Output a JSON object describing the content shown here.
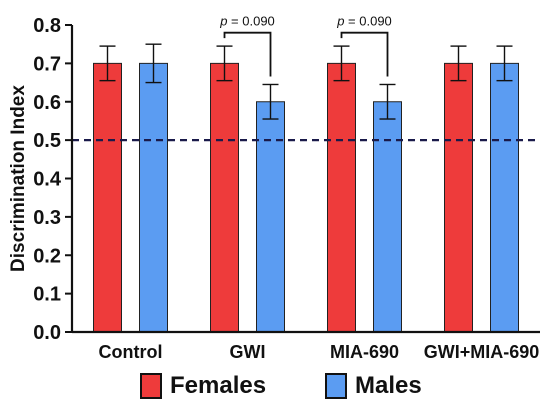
{
  "chart_data": {
    "type": "bar",
    "ylabel": "Discrimination Index",
    "xlabel": "",
    "ylim": [
      0,
      0.8
    ],
    "yticks": [
      "0.0",
      "0.1",
      "0.2",
      "0.3",
      "0.4",
      "0.5",
      "0.6",
      "0.7",
      "0.8"
    ],
    "categories": [
      "Control",
      "GWI",
      "MIA-690",
      "GWI+MIA-690"
    ],
    "series": [
      {
        "name": "Females",
        "color": "#ee3b3b",
        "values": [
          0.7,
          0.7,
          0.7,
          0.7
        ],
        "errors": [
          0.045,
          0.045,
          0.045,
          0.045
        ]
      },
      {
        "name": "Males",
        "color": "#5b9cf2",
        "values": [
          0.7,
          0.6,
          0.6,
          0.7
        ],
        "errors": [
          0.05,
          0.045,
          0.045,
          0.045
        ]
      }
    ],
    "reference_line": {
      "y": 0.5,
      "style": "dashed",
      "color": "#1a1a4a"
    },
    "annotations": [
      {
        "text": "p = 0.090",
        "category": "GWI"
      },
      {
        "text": "p = 0.090",
        "category": "MIA-690"
      }
    ],
    "legend_position": "bottom",
    "grid": false
  }
}
